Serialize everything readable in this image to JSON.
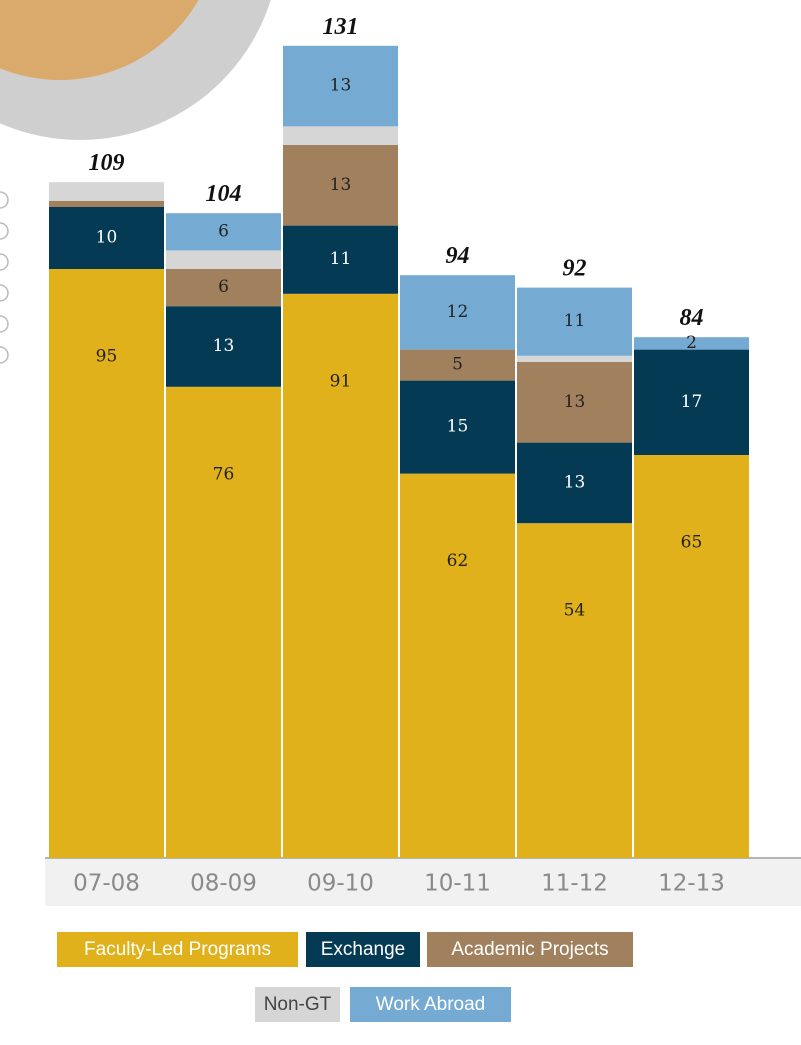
{
  "chart_data": {
    "type": "stacked_bar",
    "categories": [
      "07-08",
      "08-09",
      "09-10",
      "10-11",
      "11-12",
      "12-13"
    ],
    "totals": [
      109,
      104,
      131,
      94,
      92,
      84
    ],
    "ylim": [
      0,
      135
    ],
    "series": [
      {
        "name": "Faculty-Led Programs",
        "color": "#e0b11b",
        "values": [
          95,
          76,
          91,
          62,
          54,
          65
        ],
        "value_labels": [
          "95",
          "76",
          "91",
          "62",
          "54",
          "65"
        ]
      },
      {
        "name": "Exchange",
        "color": "#053a55",
        "values": [
          10,
          13,
          11,
          15,
          13,
          17
        ],
        "value_labels": [
          "10",
          "13",
          "11",
          "15",
          "13",
          "17"
        ]
      },
      {
        "name": "Academic Projects",
        "color": "#a1805e",
        "values": [
          1,
          6,
          13,
          5,
          13,
          0
        ],
        "value_labels": [
          null,
          "6",
          "13",
          "5",
          "13",
          null
        ]
      },
      {
        "name": "Non-GT",
        "color": "#d6d6d6",
        "values": [
          3,
          3,
          3,
          0,
          1,
          0
        ],
        "value_labels": [
          null,
          null,
          null,
          null,
          null,
          null
        ]
      },
      {
        "name": "Work Abroad",
        "color": "#75aad2",
        "values": [
          0,
          6,
          13,
          12,
          11,
          2
        ],
        "value_labels": [
          null,
          "6",
          "13",
          "12",
          "11",
          "2"
        ]
      }
    ]
  }
}
